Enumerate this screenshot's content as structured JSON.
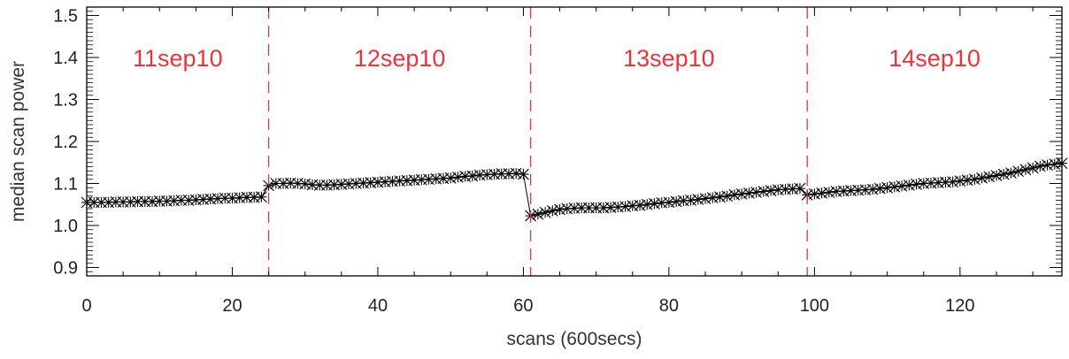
{
  "chart_data": {
    "type": "scatter",
    "title": "",
    "xlabel": "scans (600secs)",
    "ylabel": "median scan power",
    "xlim": [
      0,
      134
    ],
    "ylim": [
      0.88,
      1.52
    ],
    "x_ticks": [
      0,
      20,
      40,
      60,
      80,
      100,
      120
    ],
    "x_tick_labels": [
      "0",
      "20",
      "40",
      "60",
      "80",
      "100",
      "120"
    ],
    "y_ticks": [
      0.9,
      1.0,
      1.1,
      1.2,
      1.3,
      1.4,
      1.5
    ],
    "y_tick_labels": [
      "0.9",
      "1.0",
      "1.1",
      "1.2",
      "1.3",
      "1.4",
      "1.5"
    ],
    "grid": false,
    "marker_color": "#000000",
    "day_color": "#e8343a",
    "day_boundaries": [
      25,
      61,
      99
    ],
    "days": [
      {
        "label": "11sep10",
        "x_center": 12.5
      },
      {
        "label": "12sep10",
        "x_center": 43
      },
      {
        "label": "13sep10",
        "x_center": 80
      },
      {
        "label": "14sep10",
        "x_center": 116.5
      }
    ],
    "series": [
      {
        "x": [
          0,
          1,
          2,
          3,
          4,
          5,
          6,
          7,
          8,
          9,
          10,
          11,
          12,
          13,
          14,
          15,
          16,
          17,
          18,
          19,
          20,
          21,
          22,
          23,
          24,
          25,
          26,
          27,
          28,
          29,
          30,
          31,
          32,
          33,
          34,
          35,
          36,
          37,
          38,
          39,
          40,
          41,
          42,
          43,
          44,
          45,
          46,
          47,
          48,
          49,
          50,
          51,
          52,
          53,
          54,
          55,
          56,
          57,
          58,
          59,
          60,
          61,
          62,
          63,
          64,
          65,
          66,
          67,
          68,
          69,
          70,
          71,
          72,
          73,
          74,
          75,
          76,
          77,
          78,
          79,
          80,
          81,
          82,
          83,
          84,
          85,
          86,
          87,
          88,
          89,
          90,
          91,
          92,
          93,
          94,
          95,
          96,
          97,
          98,
          99,
          100,
          101,
          102,
          103,
          104,
          105,
          106,
          107,
          108,
          109,
          110,
          111,
          112,
          113,
          114,
          115,
          116,
          117,
          118,
          119,
          120,
          121,
          122,
          123,
          124,
          125,
          126,
          127,
          128,
          129,
          130,
          131,
          132,
          133,
          134
        ],
        "y": [
          1.055,
          1.055,
          1.055,
          1.055,
          1.056,
          1.056,
          1.056,
          1.057,
          1.057,
          1.057,
          1.058,
          1.058,
          1.059,
          1.06,
          1.06,
          1.061,
          1.062,
          1.063,
          1.064,
          1.065,
          1.065,
          1.066,
          1.067,
          1.067,
          1.068,
          1.095,
          1.1,
          1.1,
          1.101,
          1.1,
          1.099,
          1.097,
          1.096,
          1.096,
          1.097,
          1.098,
          1.099,
          1.1,
          1.101,
          1.102,
          1.103,
          1.104,
          1.105,
          1.106,
          1.107,
          1.108,
          1.109,
          1.11,
          1.111,
          1.112,
          1.113,
          1.115,
          1.117,
          1.118,
          1.12,
          1.121,
          1.122,
          1.123,
          1.123,
          1.124,
          1.122,
          1.023,
          1.027,
          1.031,
          1.035,
          1.038,
          1.04,
          1.041,
          1.042,
          1.042,
          1.042,
          1.042,
          1.043,
          1.044,
          1.045,
          1.047,
          1.048,
          1.05,
          1.052,
          1.054,
          1.055,
          1.057,
          1.059,
          1.06,
          1.062,
          1.064,
          1.066,
          1.068,
          1.07,
          1.073,
          1.075,
          1.077,
          1.079,
          1.081,
          1.083,
          1.085,
          1.086,
          1.087,
          1.088,
          1.073,
          1.075,
          1.077,
          1.079,
          1.081,
          1.082,
          1.083,
          1.084,
          1.085,
          1.086,
          1.088,
          1.09,
          1.092,
          1.094,
          1.096,
          1.098,
          1.1,
          1.101,
          1.102,
          1.103,
          1.104,
          1.106,
          1.108,
          1.11,
          1.113,
          1.116,
          1.119,
          1.122,
          1.125,
          1.129,
          1.133,
          1.137,
          1.141,
          1.144,
          1.146,
          1.148
        ]
      }
    ]
  }
}
